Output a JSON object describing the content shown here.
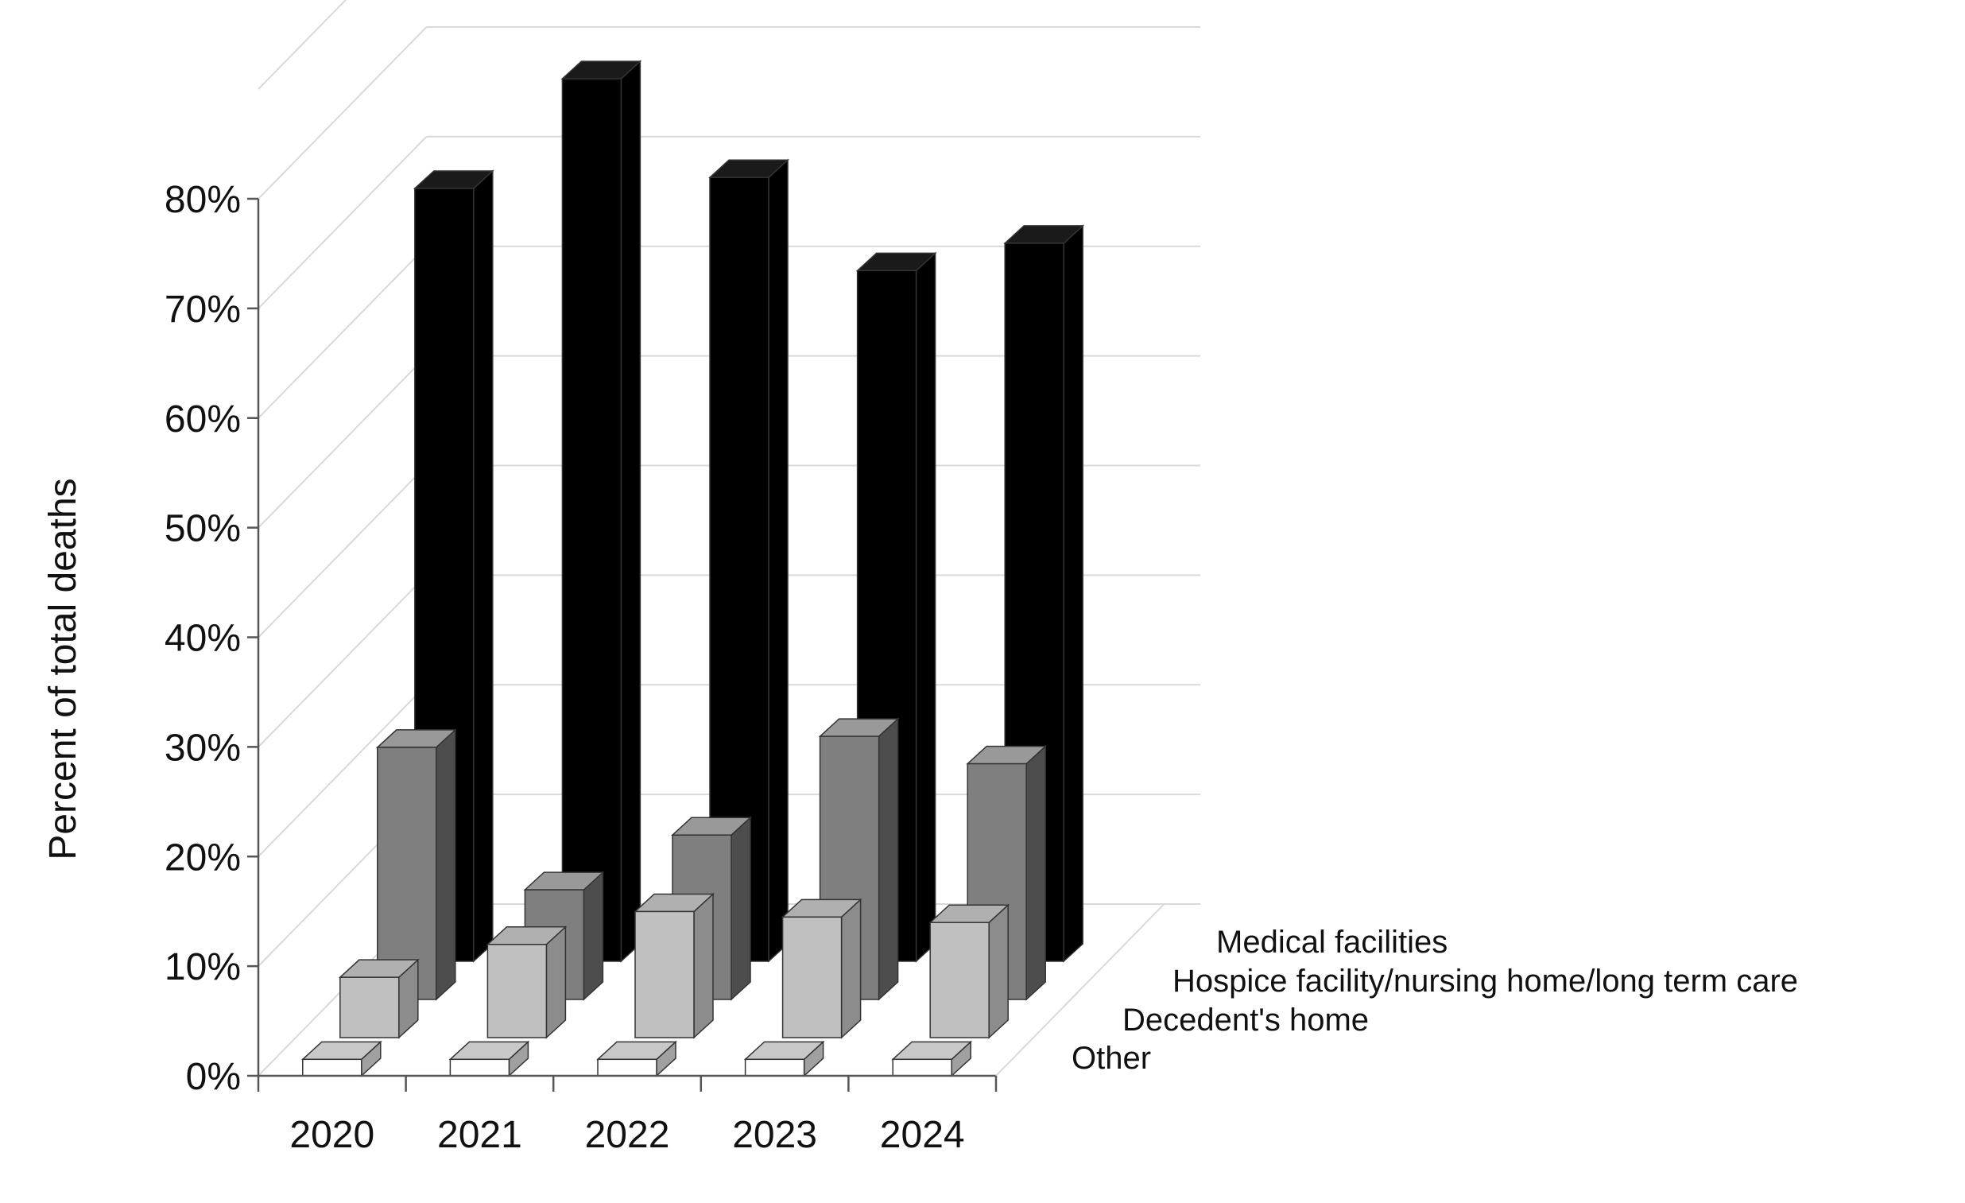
{
  "chart_data": {
    "type": "bar",
    "subtype": "3d-grouped-depth",
    "title": "",
    "xlabel": "",
    "ylabel": "Percent of total deaths",
    "ylim": [
      0,
      80
    ],
    "y_ticks": [
      "0%",
      "10%",
      "20%",
      "30%",
      "40%",
      "50%",
      "60%",
      "70%",
      "80%"
    ],
    "grid": true,
    "categories": [
      "2020",
      "2021",
      "2022",
      "2023",
      "2024"
    ],
    "series": [
      {
        "name": "Medical facilities",
        "color": "#000000",
        "values": [
          70.5,
          80.5,
          71.5,
          63.0,
          65.5
        ]
      },
      {
        "name": "Hospice facility/nursing home/long term care",
        "color": "#808080",
        "values": [
          23.0,
          10.0,
          15.0,
          24.0,
          21.5
        ]
      },
      {
        "name": "Decedent's home",
        "color": "#c0c0c0",
        "values": [
          5.5,
          8.5,
          11.5,
          11.0,
          10.5
        ]
      },
      {
        "name": "Other",
        "color": "#ffffff",
        "values": [
          1.5,
          1.5,
          1.5,
          1.5,
          1.5
        ]
      }
    ]
  }
}
